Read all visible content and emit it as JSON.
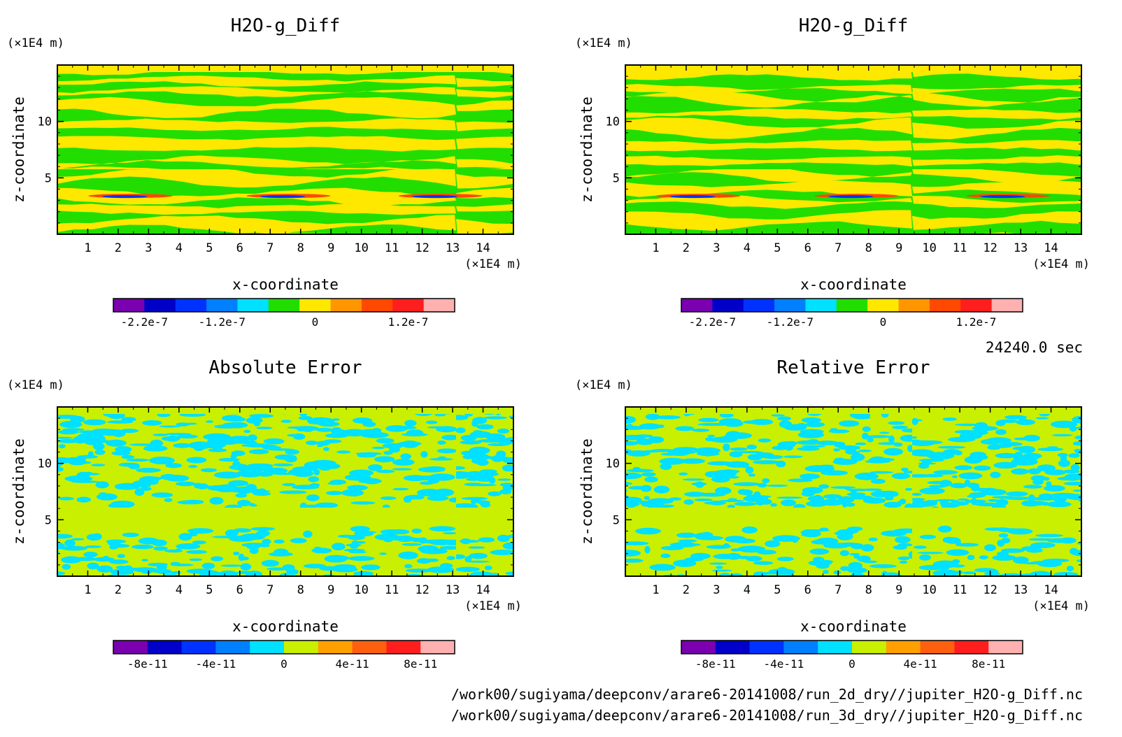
{
  "figure": {
    "time_label": "24240.0 sec",
    "file_paths": [
      "/work00/sugiyama/deepconv/arare6-20141008/run_2d_dry//jupiter_H2O-g_Diff.nc",
      "/work00/sugiyama/deepconv/arare6-20141008/run_3d_dry//jupiter_H2O-g_Diff.nc"
    ]
  },
  "chart_data": [
    {
      "type": "heatmap",
      "title": "H2O-g_Diff",
      "xlabel": "x-coordinate",
      "ylabel": "z-coordinate",
      "x_unit": "(×1E4 m)",
      "y_unit": "(×1E4 m)",
      "xlim": [
        0,
        15
      ],
      "ylim": [
        0,
        15
      ],
      "x_ticks": [
        1,
        2,
        3,
        4,
        5,
        6,
        7,
        8,
        9,
        10,
        11,
        12,
        13,
        14
      ],
      "y_ticks": [
        5,
        10
      ],
      "colorbar": {
        "colors": [
          "#7a00b0",
          "#0000c8",
          "#0032ff",
          "#0080ff",
          "#00e0ff",
          "#22dd00",
          "#ffe800",
          "#ff9600",
          "#ff4800",
          "#ff1e1e",
          "#ffb0b0"
        ],
        "tick_labels": [
          "-2.2e-7",
          "-1.2e-7",
          "0",
          "1.2e-7"
        ],
        "tick_values": [
          -2.2e-07,
          -1.2e-07,
          0,
          1.2e-07
        ],
        "range": [
          -2.6e-07,
          1.8e-07
        ]
      },
      "pattern": "horizontal bands",
      "fill_colors": [
        "#22dd00",
        "#ffe800"
      ]
    },
    {
      "type": "heatmap",
      "title": "H2O-g_Diff",
      "xlabel": "x-coordinate",
      "ylabel": "z-coordinate",
      "x_unit": "(×1E4 m)",
      "y_unit": "(×1E4 m)",
      "xlim": [
        0,
        15
      ],
      "ylim": [
        0,
        15
      ],
      "x_ticks": [
        1,
        2,
        3,
        4,
        5,
        6,
        7,
        8,
        9,
        10,
        11,
        12,
        13,
        14
      ],
      "y_ticks": [
        5,
        10
      ],
      "colorbar": {
        "colors": [
          "#7a00b0",
          "#0000c8",
          "#0032ff",
          "#0080ff",
          "#00e0ff",
          "#22dd00",
          "#ffe800",
          "#ff9600",
          "#ff4800",
          "#ff1e1e",
          "#ffb0b0"
        ],
        "tick_labels": [
          "-2.2e-7",
          "-1.2e-7",
          "0",
          "1.2e-7"
        ],
        "tick_values": [
          -2.2e-07,
          -1.2e-07,
          0,
          1.2e-07
        ],
        "range": [
          -2.6e-07,
          1.8e-07
        ]
      },
      "pattern": "horizontal bands",
      "fill_colors": [
        "#22dd00",
        "#ffe800"
      ]
    },
    {
      "type": "heatmap",
      "title": "Absolute Error",
      "xlabel": "x-coordinate",
      "ylabel": "z-coordinate",
      "x_unit": "(×1E4 m)",
      "y_unit": "(×1E4 m)",
      "xlim": [
        0,
        15
      ],
      "ylim": [
        0,
        15
      ],
      "x_ticks": [
        1,
        2,
        3,
        4,
        5,
        6,
        7,
        8,
        9,
        10,
        11,
        12,
        13,
        14
      ],
      "y_ticks": [
        5,
        10
      ],
      "colorbar": {
        "colors": [
          "#7a00b0",
          "#0000c8",
          "#0032ff",
          "#0080ff",
          "#00e0ff",
          "#c8f000",
          "#ffa000",
          "#ff6010",
          "#ff1e1e",
          "#ffb0b0"
        ],
        "tick_labels": [
          "-8e-11",
          "-4e-11",
          "0",
          "4e-11",
          "8e-11"
        ],
        "tick_values": [
          -8e-11,
          -4e-11,
          0,
          4e-11,
          8e-11
        ],
        "range": [
          -1e-10,
          1e-10
        ]
      },
      "pattern": "irregular blotches",
      "fill_colors": [
        "#00e0ff",
        "#c8f000"
      ]
    },
    {
      "type": "heatmap",
      "title": "Relative Error",
      "xlabel": "x-coordinate",
      "ylabel": "z-coordinate",
      "x_unit": "(×1E4 m)",
      "y_unit": "(×1E4 m)",
      "xlim": [
        0,
        15
      ],
      "ylim": [
        0,
        15
      ],
      "x_ticks": [
        1,
        2,
        3,
        4,
        5,
        6,
        7,
        8,
        9,
        10,
        11,
        12,
        13,
        14
      ],
      "y_ticks": [
        5,
        10
      ],
      "colorbar": {
        "colors": [
          "#7a00b0",
          "#0000c8",
          "#0032ff",
          "#0080ff",
          "#00e0ff",
          "#c8f000",
          "#ffa000",
          "#ff6010",
          "#ff1e1e",
          "#ffb0b0"
        ],
        "tick_labels": [
          "-8e-11",
          "-4e-11",
          "0",
          "4e-11",
          "8e-11"
        ],
        "tick_values": [
          -8e-11,
          -4e-11,
          0,
          4e-11,
          8e-11
        ],
        "range": [
          -1e-10,
          1e-10
        ]
      },
      "pattern": "irregular blotches",
      "fill_colors": [
        "#00e0ff",
        "#c8f000"
      ]
    }
  ]
}
